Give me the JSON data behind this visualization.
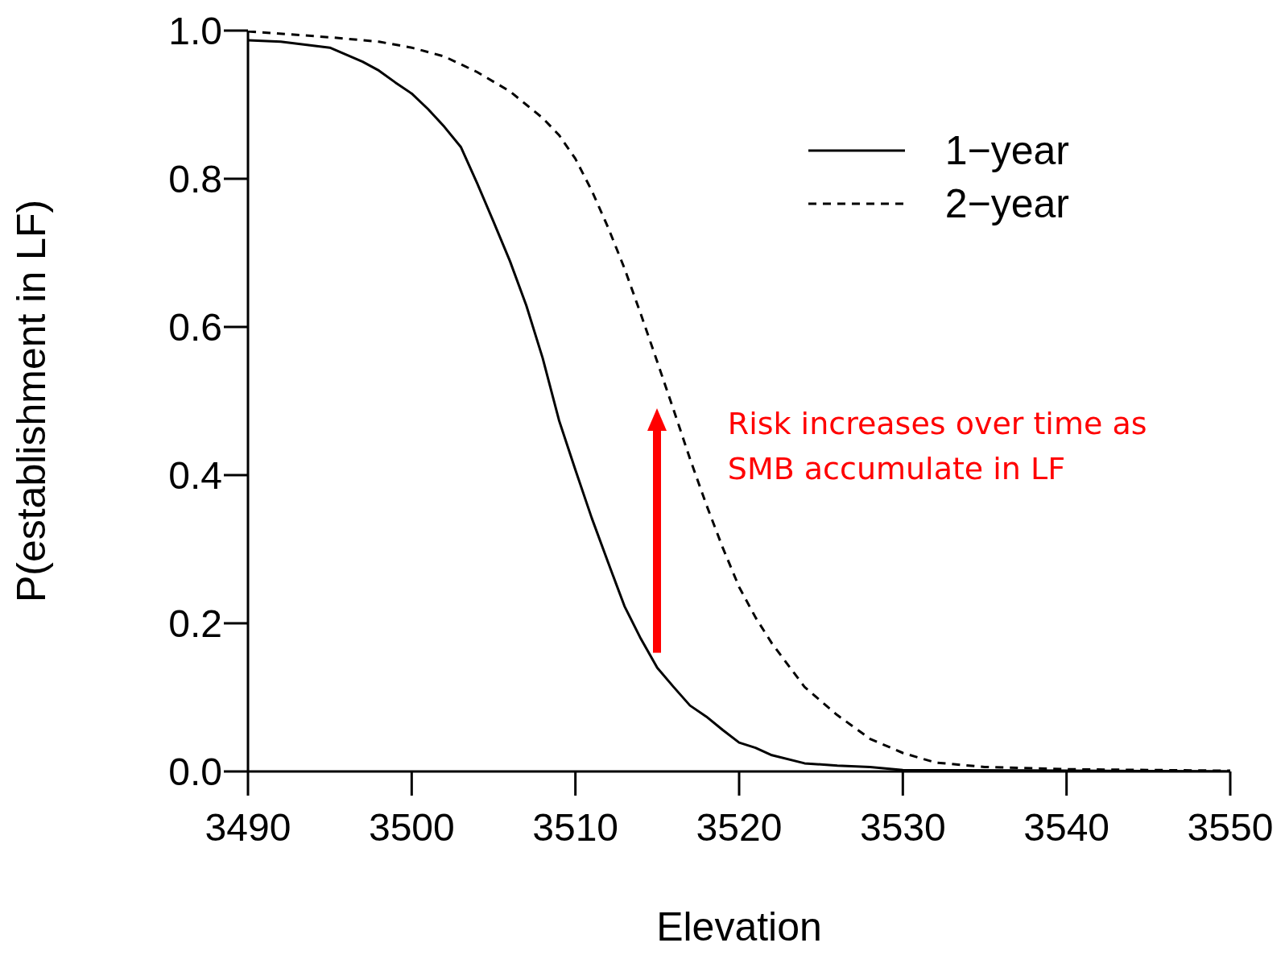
{
  "chart_data": {
    "type": "line",
    "xlabel": "Elevation",
    "ylabel": "P(establishment in LF)",
    "xlim": [
      3490,
      3550
    ],
    "xticks": [
      3490,
      3500,
      3510,
      3520,
      3530,
      3540,
      3550
    ],
    "ylim": [
      0,
      1
    ],
    "yticks": [
      {
        "value": 0,
        "label": "0.0"
      },
      {
        "value": 0.2,
        "label": "0.2"
      },
      {
        "value": 0.4,
        "label": "0.4"
      },
      {
        "value": 0.6,
        "label": "0.6"
      },
      {
        "value": 0.8,
        "label": "0.8"
      },
      {
        "value": 1,
        "label": "1.0"
      }
    ],
    "grid": false,
    "legend": "top right",
    "marker": "none",
    "annotations": [
      "Risk increases over time as SMB accumulate in LF"
    ],
    "series": [
      {
        "name": "1−year",
        "color": "#000000",
        "line_style": "solid",
        "x": [
          3490,
          3492,
          3495,
          3497,
          3498,
          3499,
          3500,
          3501,
          3502,
          3503,
          3504,
          3505,
          3506,
          3507,
          3508,
          3509,
          3510,
          3511,
          3512,
          3513,
          3514,
          3515,
          3516,
          3517,
          3518,
          3519,
          3520,
          3521,
          3522,
          3524,
          3526,
          3528,
          3530,
          3540,
          3550
        ],
        "values": [
          0.987,
          0.985,
          0.977,
          0.958,
          0.946,
          0.93,
          0.915,
          0.894,
          0.87,
          0.843,
          0.794,
          0.742,
          0.689,
          0.629,
          0.558,
          0.474,
          0.407,
          0.342,
          0.282,
          0.223,
          0.179,
          0.14,
          0.114,
          0.089,
          0.074,
          0.056,
          0.039,
          0.032,
          0.022,
          0.011,
          0.008,
          0.006,
          0.002,
          0.001,
          0
        ]
      },
      {
        "name": "2−year",
        "color": "#000000",
        "line_style": "dashed",
        "x": [
          3490,
          3495,
          3498,
          3500,
          3502,
          3504,
          3506,
          3507,
          3508,
          3509,
          3510,
          3511,
          3512,
          3513,
          3514,
          3515,
          3516,
          3517,
          3518,
          3519,
          3520,
          3521,
          3522,
          3524,
          3526,
          3528,
          3530,
          3532,
          3535,
          3540,
          3545,
          3550
        ],
        "values": [
          0.999,
          0.991,
          0.985,
          0.977,
          0.965,
          0.944,
          0.918,
          0.9,
          0.882,
          0.859,
          0.827,
          0.784,
          0.734,
          0.679,
          0.617,
          0.553,
          0.488,
          0.422,
          0.36,
          0.302,
          0.249,
          0.208,
          0.173,
          0.114,
          0.076,
          0.044,
          0.025,
          0.012,
          0.006,
          0.003,
          0.002,
          0.001
        ]
      }
    ]
  }
}
